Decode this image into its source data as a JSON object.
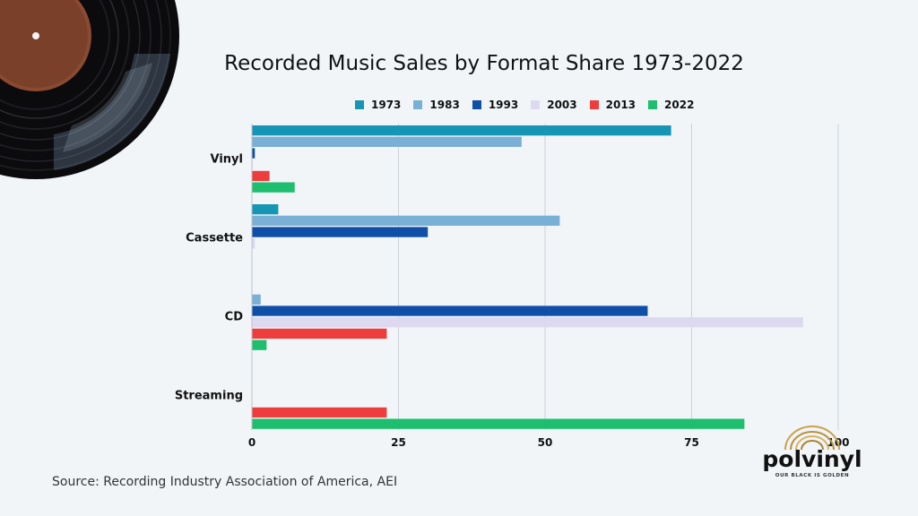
{
  "chart_data": {
    "type": "bar",
    "orientation": "horizontal",
    "title": "Recorded Music Sales by Format Share 1973-2022",
    "categories": [
      "Vinyl",
      "Cassette",
      "CD",
      "Streaming"
    ],
    "series": [
      {
        "name": "1973",
        "color": "#1696b4",
        "values": [
          71.5,
          4.5,
          0,
          0
        ]
      },
      {
        "name": "1983",
        "color": "#7aafd6",
        "values": [
          46,
          52.5,
          1.5,
          0
        ]
      },
      {
        "name": "1993",
        "color": "#0f4fa8",
        "values": [
          0.5,
          30,
          67.5,
          0
        ]
      },
      {
        "name": "2003",
        "color": "#ddd9f0",
        "values": [
          0.1,
          0.5,
          94,
          0
        ]
      },
      {
        "name": "2013",
        "color": "#ee3d3d",
        "values": [
          3,
          0,
          23,
          23
        ]
      },
      {
        "name": "2022",
        "color": "#1dbf6e",
        "values": [
          7.3,
          0,
          2.5,
          84
        ]
      }
    ],
    "x_ticks": [
      0,
      25,
      50,
      75,
      100
    ],
    "xlim": [
      0,
      100
    ],
    "grid": true,
    "legend_position": "top"
  },
  "source": "Source: Recording Industry Association of America, AEI",
  "brand": {
    "name": "polvinyl",
    "tagline": "OUR BLACK IS GOLDEN"
  }
}
